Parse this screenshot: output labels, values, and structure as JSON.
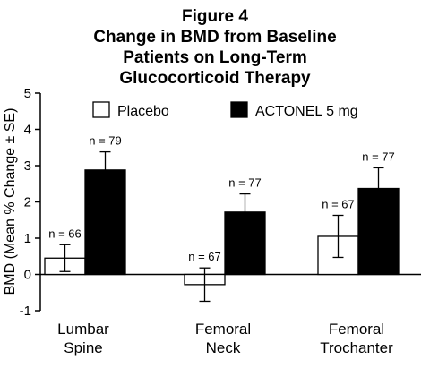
{
  "chart_data": {
    "type": "bar",
    "title_lines": [
      "Figure 4",
      "Change in BMD from Baseline",
      "Patients on Long-Term",
      "Glucocorticoid Therapy"
    ],
    "xlabel": "",
    "ylabel": "BMD (Mean % Change ± SE)",
    "ylim": [
      -1,
      5
    ],
    "yticks": [
      "5",
      "4",
      "3",
      "2",
      "1",
      "0",
      "-1"
    ],
    "categories": [
      [
        "Lumbar",
        "Spine"
      ],
      [
        "Femoral",
        "Neck"
      ],
      [
        "Femoral",
        "Trochanter"
      ]
    ],
    "legend_placement": "top",
    "series": [
      {
        "name": "Placebo",
        "color": "#ffffff",
        "values": [
          0.45,
          -0.28,
          1.05
        ],
        "se": [
          0.37,
          0.46,
          0.58
        ],
        "n_labels": [
          "n = 66",
          "n = 67",
          "n = 67"
        ]
      },
      {
        "name": "ACTONEL 5 mg",
        "color": "#000000",
        "values": [
          2.88,
          1.72,
          2.37
        ],
        "se": [
          0.5,
          0.5,
          0.57
        ],
        "n_labels": [
          "n = 79",
          "n = 77",
          "n = 77"
        ]
      }
    ]
  }
}
